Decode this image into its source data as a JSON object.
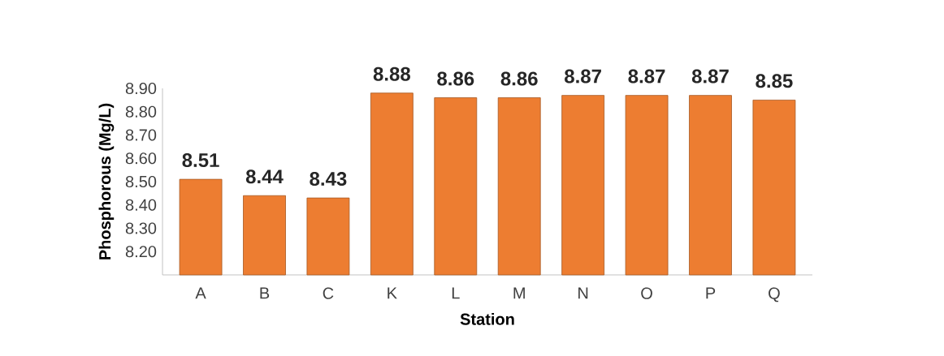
{
  "chart_data": {
    "type": "bar",
    "xlabel": "Station",
    "ylabel": "Phosphorous (Mg/L)",
    "categories": [
      "A",
      "B",
      "C",
      "K",
      "L",
      "M",
      "N",
      "O",
      "P",
      "Q"
    ],
    "values": [
      8.51,
      8.44,
      8.43,
      8.88,
      8.86,
      8.86,
      8.87,
      8.87,
      8.87,
      8.85
    ],
    "color": "#ed7d31",
    "ylim": [
      8.1,
      8.9
    ],
    "yticks": [
      {
        "value": 8.2,
        "label": "8.20"
      },
      {
        "value": 8.3,
        "label": "8.30"
      },
      {
        "value": 8.4,
        "label": "8.40"
      },
      {
        "value": 8.5,
        "label": "8.50"
      },
      {
        "value": 8.6,
        "label": "8.60"
      },
      {
        "value": 8.7,
        "label": "8.70"
      },
      {
        "value": 8.8,
        "label": "8.80"
      },
      {
        "value": 8.9,
        "label": "8.90"
      }
    ],
    "data_labels": true,
    "grid": false
  }
}
